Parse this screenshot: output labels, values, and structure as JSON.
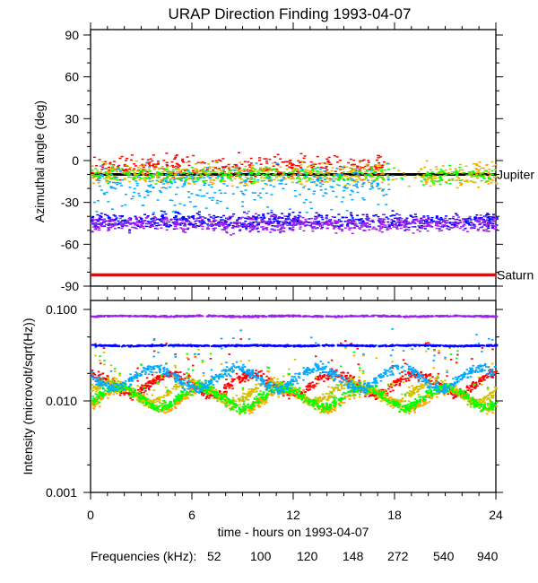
{
  "chart_data": [
    {
      "type": "scatter",
      "title": "URAP Direction Finding  1993-04-07",
      "ylabel": "Azimuthal angle (deg)",
      "ylim": [
        -90,
        94
      ],
      "yticks": [
        "90",
        "60",
        "30",
        "0",
        "-30",
        "-60",
        "-90"
      ],
      "ytick_values": [
        90,
        60,
        30,
        0,
        -30,
        -60,
        -90
      ],
      "xlim": [
        0,
        24
      ],
      "reference_lines": [
        {
          "label": "Jupiter",
          "value": -10,
          "color": "#000000",
          "x_range": [
            0,
            24
          ]
        },
        {
          "label": "Saturn",
          "value": -82,
          "color": "#ff0000",
          "x_range": [
            0,
            24
          ]
        }
      ],
      "series": [
        {
          "name": "52",
          "color": "#ff0000",
          "mean": -4,
          "spread": 6,
          "x_range": [
            0,
            17.5
          ]
        },
        {
          "name": "100",
          "color": "#ffa500",
          "mean": -10,
          "spread": 6,
          "x_range": [
            0,
            24
          ]
        },
        {
          "name": "120",
          "color": "#d2c000",
          "mean": -9,
          "spread": 5,
          "x_range": [
            0,
            24
          ]
        },
        {
          "name": "148",
          "color": "#00ff00",
          "mean": -10,
          "spread": 4,
          "x_range": [
            0,
            24
          ]
        },
        {
          "name": "272",
          "color": "#00aaff",
          "mean": -14,
          "spread": 8,
          "x_range": [
            0,
            19
          ]
        },
        {
          "name": "540",
          "color": "#0000ff",
          "mean": -43,
          "spread": 4,
          "x_range": [
            0,
            24
          ]
        },
        {
          "name": "940",
          "color": "#a020f0",
          "mean": -45,
          "spread": 4,
          "x_range": [
            0,
            24
          ]
        }
      ]
    },
    {
      "type": "scatter",
      "ylabel": "Intensity (microvolt/sqrt(Hz))",
      "yscale": "log",
      "ylim": [
        0.001,
        0.12
      ],
      "yticks": [
        "0.100",
        "0.010",
        "0.001"
      ],
      "ytick_values": [
        0.1,
        0.01,
        0.001
      ],
      "xlabel": "time - hours on 1993-04-07",
      "xlim": [
        0,
        24
      ],
      "xticks": [
        "0",
        "6",
        "12",
        "18",
        "24"
      ],
      "xtick_values": [
        0,
        6,
        12,
        18,
        24
      ],
      "series": [
        {
          "name": "52",
          "color": "#ff0000",
          "baseline": 0.016
        },
        {
          "name": "100",
          "color": "#ffa500",
          "baseline": 0.011
        },
        {
          "name": "120",
          "color": "#d2c000",
          "baseline": 0.013
        },
        {
          "name": "148",
          "color": "#00ff00",
          "baseline": 0.0115
        },
        {
          "name": "272",
          "color": "#00aaff",
          "baseline": 0.0185
        },
        {
          "name": "540",
          "color": "#0000ff",
          "baseline": 0.041
        },
        {
          "name": "940",
          "color": "#a020f0",
          "baseline": 0.086
        }
      ]
    }
  ],
  "legend": {
    "label": "Frequencies (kHz):",
    "items": [
      "52",
      "100",
      "120",
      "148",
      "272",
      "540",
      "940"
    ]
  }
}
